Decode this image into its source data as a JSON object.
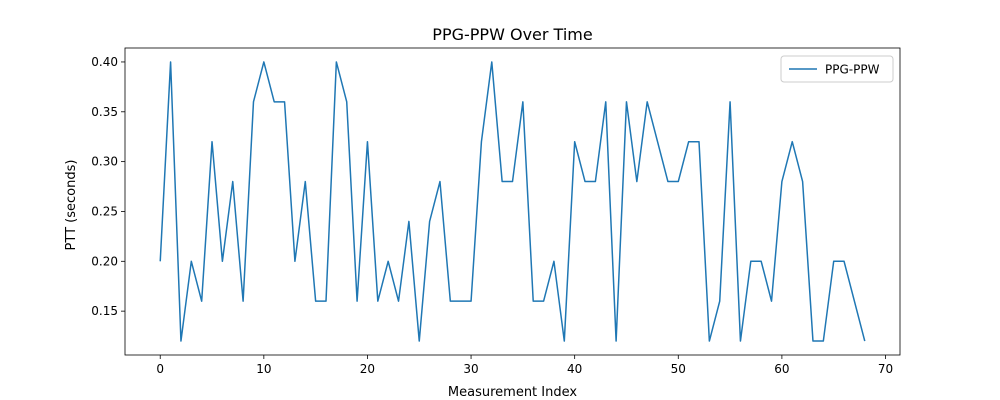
{
  "chart_data": {
    "type": "line",
    "title": "PPG-PPW Over Time",
    "xlabel": "Measurement Index",
    "ylabel": "PTT (seconds)",
    "xlim": [
      -3.4,
      71.4
    ],
    "ylim": [
      0.106,
      0.414
    ],
    "xticks": [
      0,
      10,
      20,
      30,
      40,
      50,
      60,
      70
    ],
    "yticks": [
      0.15,
      0.2,
      0.25,
      0.3,
      0.35,
      0.4
    ],
    "ytick_labels": [
      "0.15",
      "0.20",
      "0.25",
      "0.30",
      "0.35",
      "0.40"
    ],
    "grid": false,
    "legend_position": "top-right",
    "series": [
      {
        "name": "PPG-PPW",
        "color": "#1f77b4",
        "x": [
          0,
          1,
          2,
          3,
          4,
          5,
          6,
          7,
          8,
          9,
          10,
          11,
          12,
          13,
          14,
          15,
          16,
          17,
          18,
          19,
          20,
          21,
          22,
          23,
          24,
          25,
          26,
          27,
          28,
          29,
          30,
          31,
          32,
          33,
          34,
          35,
          36,
          37,
          38,
          39,
          40,
          41,
          42,
          43,
          44,
          45,
          46,
          47,
          48,
          49,
          50,
          51,
          52,
          53,
          54,
          55,
          56,
          57,
          58,
          59,
          60,
          61,
          62,
          63,
          64,
          65,
          66,
          67,
          68
        ],
        "values": [
          0.2,
          0.4,
          0.12,
          0.2,
          0.16,
          0.32,
          0.2,
          0.28,
          0.16,
          0.36,
          0.4,
          0.36,
          0.36,
          0.2,
          0.28,
          0.16,
          0.16,
          0.4,
          0.36,
          0.16,
          0.32,
          0.16,
          0.2,
          0.16,
          0.24,
          0.12,
          0.24,
          0.28,
          0.16,
          0.16,
          0.16,
          0.32,
          0.4,
          0.28,
          0.28,
          0.36,
          0.16,
          0.16,
          0.2,
          0.12,
          0.32,
          0.28,
          0.28,
          0.36,
          0.12,
          0.36,
          0.28,
          0.36,
          0.32,
          0.28,
          0.28,
          0.32,
          0.32,
          0.12,
          0.16,
          0.36,
          0.12,
          0.2,
          0.2,
          0.16,
          0.28,
          0.32,
          0.28,
          0.12,
          0.12,
          0.2,
          0.2,
          0.16,
          0.12
        ]
      }
    ]
  }
}
